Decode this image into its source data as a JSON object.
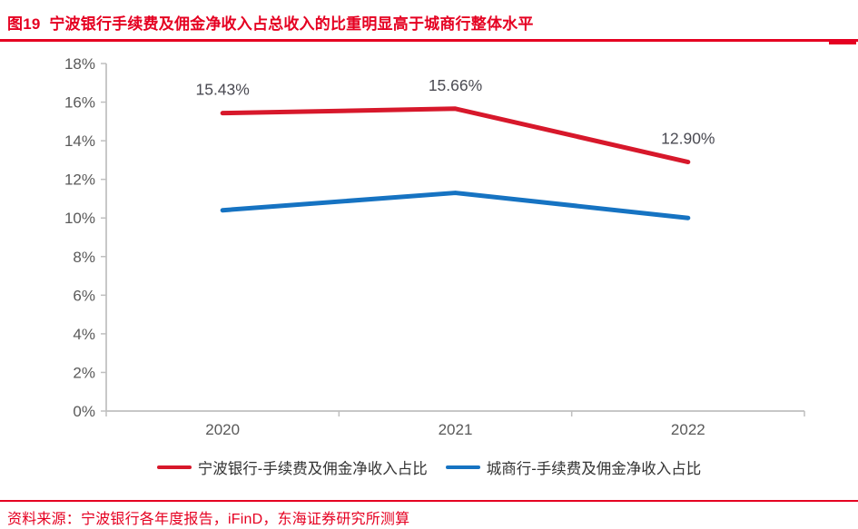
{
  "header": {
    "title": "图19  宁波银行手续费及佣金净收入占总收入的比重明显高于城商行整体水平"
  },
  "footer": {
    "source": "资料来源：宁波银行各年度报告，iFinD，东海证券研究所测算"
  },
  "colors": {
    "accent_red": "#e50021",
    "series_red": "#d7182b",
    "series_blue": "#1673c2",
    "axis_gray": "#bfbfbf",
    "tick_text": "#595959",
    "data_label_text": "#4a4a52",
    "legend_text": "#333333"
  },
  "chart_data": {
    "type": "line",
    "title": "宁波银行手续费及佣金净收入占总收入的比重明显高于城商行整体水平",
    "categories": [
      "2020",
      "2021",
      "2022"
    ],
    "series": [
      {
        "name": "宁波银行-手续费及佣金净收入占比",
        "color": "#d7182b",
        "values": [
          15.43,
          15.66,
          12.9
        ],
        "labels": [
          "15.43%",
          "15.66%",
          "12.90%"
        ],
        "show_labels": true
      },
      {
        "name": "城商行-手续费及佣金净收入占比",
        "color": "#1673c2",
        "values": [
          10.4,
          11.3,
          10.0
        ],
        "labels": [],
        "show_labels": false
      }
    ],
    "xlabel": "",
    "ylabel": "",
    "ylim": [
      0,
      18
    ],
    "ytick_step": 2,
    "ytick_labels": [
      "0%",
      "2%",
      "4%",
      "6%",
      "8%",
      "10%",
      "12%",
      "14%",
      "16%",
      "18%"
    ],
    "grid": false,
    "legend_position": "bottom"
  }
}
